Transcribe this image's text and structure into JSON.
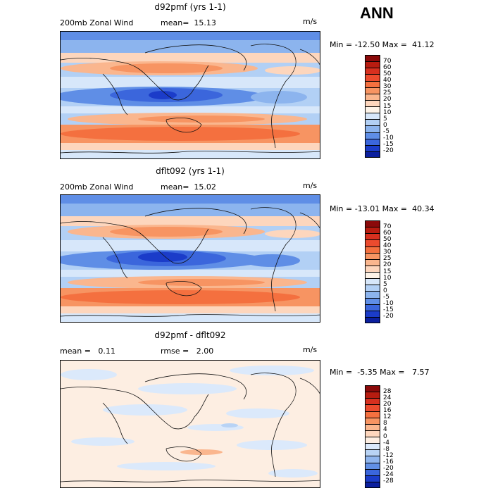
{
  "season": "ANN",
  "panels": [
    {
      "title": "d92pmf (yrs 1-1)",
      "left_label": "200mb Zonal Wind",
      "middle_label": "mean=  15.13",
      "units": "m/s",
      "stats": "Min = -12.50 Max =  41.12",
      "colorbar": {
        "labels": [
          "70",
          "60",
          "50",
          "40",
          "30",
          "25",
          "20",
          "15",
          "10",
          "5",
          "0",
          "-5",
          "-10",
          "-15",
          "-20"
        ],
        "colors": [
          "#8b0a0a",
          "#b81c10",
          "#d7301f",
          "#ec4b2e",
          "#f4703f",
          "#f79462",
          "#fab68e",
          "#fdd6bd",
          "#fdf3e8",
          "#d7e7fa",
          "#b2d0f5",
          "#8cb4ee",
          "#5f8ee6",
          "#3b66dc",
          "#1b3cc9",
          "#0b1f9e"
        ]
      }
    },
    {
      "title": "dflt092 (yrs 1-1)",
      "left_label": "200mb Zonal Wind",
      "middle_label": "mean=  15.02",
      "units": "m/s",
      "stats": "Min = -13.01 Max =  40.34",
      "colorbar": {
        "labels": [
          "70",
          "60",
          "50",
          "40",
          "30",
          "25",
          "20",
          "15",
          "10",
          "5",
          "0",
          "-5",
          "-10",
          "-15",
          "-20"
        ],
        "colors": [
          "#8b0a0a",
          "#b81c10",
          "#d7301f",
          "#ec4b2e",
          "#f4703f",
          "#f79462",
          "#fab68e",
          "#fdd6bd",
          "#fdf3e8",
          "#d7e7fa",
          "#b2d0f5",
          "#8cb4ee",
          "#5f8ee6",
          "#3b66dc",
          "#1b3cc9",
          "#0b1f9e"
        ]
      }
    },
    {
      "title": "d92pmf - dflt092",
      "left_label": "mean =   0.11",
      "middle_label": "rmse =   2.00",
      "units": "m/s",
      "stats": "Min =  -5.35 Max =   7.57",
      "colorbar": {
        "labels": [
          "28",
          "24",
          "20",
          "16",
          "12",
          "8",
          "4",
          "0",
          "-4",
          "-8",
          "-12",
          "-16",
          "-20",
          "-24",
          "-28"
        ],
        "colors": [
          "#8b0a0a",
          "#b81c10",
          "#d7301f",
          "#ec4b2e",
          "#f4703f",
          "#f79462",
          "#fab68e",
          "#fdd6bd",
          "#fdeee2",
          "#dbe9fb",
          "#b8d3f5",
          "#8fb5ee",
          "#6190e6",
          "#3b66dc",
          "#1b3cc9",
          "#0b1f9e"
        ]
      }
    }
  ]
}
